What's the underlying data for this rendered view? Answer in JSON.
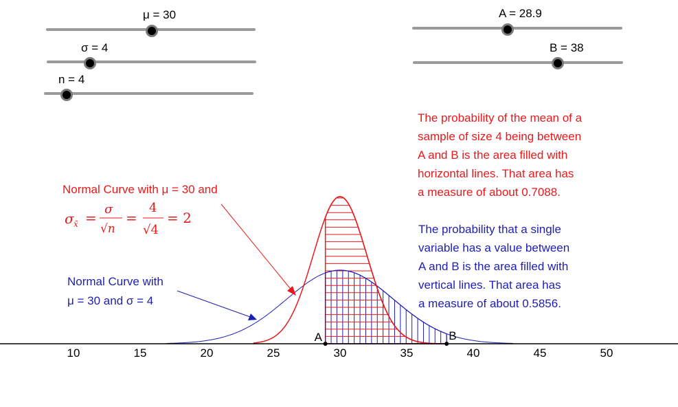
{
  "sliders": {
    "mu": {
      "label": "μ = 30",
      "value": 30,
      "min": 0,
      "max": 60
    },
    "sigma": {
      "label": "σ = 4",
      "value": 4,
      "min": 1,
      "max": 30
    },
    "n": {
      "label": "n = 4",
      "value": 4,
      "min": 1,
      "max": 60
    },
    "A": {
      "label": "A = 28.9",
      "value": 28.9,
      "min": 0,
      "max": 60
    },
    "B": {
      "label": "B = 38",
      "value": 38,
      "min": 0,
      "max": 60
    }
  },
  "notes": {
    "red_text": "The probability of the mean of a\nsample of size 4 being between\nA and B is the area filled with\nhorizontal lines.  That area has\na measure of about 0.7088.",
    "blue_text": "The probability that a single\nvariable has a value between\nA and B is the area filled with\nvertical lines.  That area has\na measure of about 0.5856."
  },
  "annotations": {
    "red_label": "Normal Curve with μ = 30 and",
    "blue_label_line1": "Normal Curve with",
    "blue_label_line2": "μ = 30 and σ = 4",
    "formula": {
      "lhs": "σ",
      "lhs_sub": "x̄",
      "frac1_num": "σ",
      "frac1_den": "√n",
      "frac2_num": "4",
      "frac2_den": "√4",
      "result": "= 2"
    },
    "point_A": "A",
    "point_B": "B"
  },
  "axis": {
    "ticks": [
      10,
      15,
      20,
      25,
      30,
      35,
      40,
      45,
      50
    ]
  },
  "chart_data": {
    "type": "area",
    "series": [
      {
        "mean": 30,
        "sd": 2,
        "color": "#e8191b",
        "fill": "horizontal lines",
        "shaded_from": 28.9,
        "shaded_to": 38,
        "area": 0.7088
      },
      {
        "mean": 30,
        "sd": 4,
        "color": "#1e1eb4",
        "fill": "vertical lines",
        "shaded_from": 28.9,
        "shaded_to": 38,
        "area": 0.5856
      }
    ],
    "xlim": [
      5,
      55
    ]
  }
}
